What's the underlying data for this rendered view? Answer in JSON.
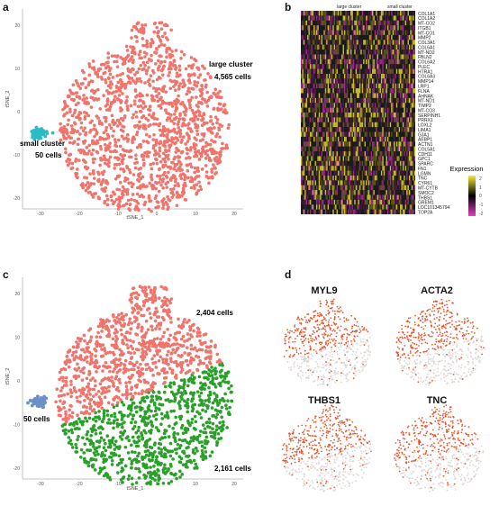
{
  "panels": {
    "a": {
      "label": "a",
      "annotations": {
        "large_title": "large cluster",
        "large_count": "4,565 cells",
        "small_title": "small cluster",
        "small_count": "50 cells"
      },
      "xlabel": "tSNE_1",
      "ylabel": "tSNE_2",
      "xticks": [
        "-30",
        "-20",
        "-10",
        "0",
        "10",
        "20"
      ],
      "yticks": [
        "20",
        "10",
        "0",
        "-10",
        "-20"
      ],
      "colors": {
        "large": "#f0746b",
        "small": "#2bbcc4"
      }
    },
    "b": {
      "label": "b",
      "column_headers": [
        "large cluster",
        "small cluster"
      ],
      "genes": [
        "COL1A1",
        "COL1A2",
        "MT-CO2",
        "ITGB1",
        "MT-CO1",
        "MMP2",
        "COL3A1",
        "COL6A1",
        "MT-ND2",
        "FBLN2",
        "COL6A2",
        "PLEC",
        "HTRA1",
        "COL6A3",
        "MMP14",
        "LRP1",
        "FLNA",
        "AHNAK",
        "MT-ND1",
        "TIMP2",
        "MT-CO3",
        "SERPINH1",
        "PRRX1",
        "LOXL2",
        "LIMA1",
        "GJA1",
        "AEBP1",
        "ACTN1",
        "COL5A1",
        "CDH11",
        "GPC1",
        "SPARC",
        "FN1",
        "LGMN",
        "TNC",
        "CYR61",
        "MT-CYTB",
        "SMOC2",
        "THBS1",
        "GREM1",
        "LOC101345794",
        "TOP2A"
      ],
      "legend": {
        "title": "Expression",
        "ticks": [
          "2",
          "1",
          "0",
          "-1",
          "-2"
        ],
        "colors": {
          "high": "#f4ec37",
          "mid": "#000000",
          "low": "#e23fc4"
        }
      }
    },
    "c": {
      "label": "c",
      "annotations": {
        "top_count": "2,404 cells",
        "small_count": "50 cells",
        "bottom_count": "2,161 cells"
      },
      "xlabel": "tSNE_1",
      "ylabel": "tSNE_2",
      "xticks": [
        "-30",
        "-20",
        "-10",
        "0",
        "10",
        "20"
      ],
      "yticks": [
        "20",
        "10",
        "0",
        "-10",
        "-20"
      ],
      "colors": {
        "top": "#f0746b",
        "bottom": "#2aa02a",
        "small": "#6b8fc7"
      }
    },
    "d": {
      "label": "d",
      "genes": [
        "MYL9",
        "ACTA2",
        "THBS1",
        "TNC"
      ],
      "colors": {
        "high": "#e8471a",
        "low": "#d9d2ce"
      }
    }
  }
}
